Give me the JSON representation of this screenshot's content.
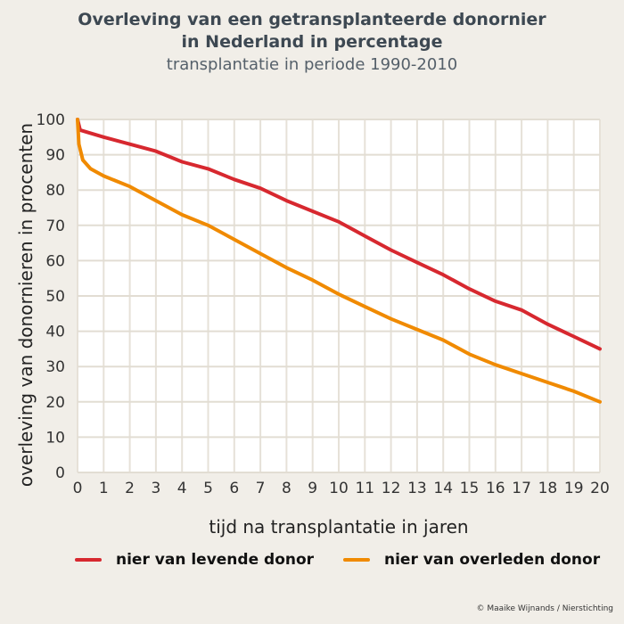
{
  "chart_data": {
    "type": "line",
    "title": "Overleving van een getransplanteerde donornier in Nederland in percentage",
    "title_lines": [
      "Overleving van een getransplanteerde donornier",
      "in Nederland in percentage"
    ],
    "subtitle": "transplantatie in periode 1990-2010",
    "xlabel": "tijd na transplantatie in jaren",
    "ylabel": "overleving van donornieren in procenten",
    "xlim": [
      0,
      20
    ],
    "ylim": [
      0,
      100
    ],
    "xticks": [
      0,
      1,
      2,
      3,
      4,
      5,
      6,
      7,
      8,
      9,
      10,
      11,
      12,
      13,
      14,
      15,
      16,
      17,
      18,
      19,
      20
    ],
    "yticks": [
      0,
      10,
      20,
      30,
      40,
      50,
      60,
      70,
      80,
      90,
      100
    ],
    "grid": true,
    "legend_placement": "bottom",
    "series": [
      {
        "name": "nier van levende donor",
        "color": "#d7282f",
        "x": [
          0,
          0.1,
          1,
          2,
          3,
          4,
          5,
          6,
          7,
          8,
          9,
          10,
          11,
          12,
          13,
          14,
          15,
          16,
          17,
          18,
          19,
          20
        ],
        "y": [
          100,
          97,
          95,
          93,
          91,
          88,
          86,
          83,
          80.5,
          77,
          74,
          71,
          67,
          63,
          59.5,
          56,
          52,
          48.5,
          46,
          42,
          38.5,
          35
        ]
      },
      {
        "name": "nier van overleden donor",
        "color": "#f08a00",
        "x": [
          0,
          0.05,
          0.2,
          0.5,
          1,
          2,
          3,
          4,
          5,
          6,
          7,
          8,
          9,
          10,
          11,
          12,
          13,
          14,
          15,
          16,
          17,
          18,
          19,
          20
        ],
        "y": [
          100,
          93,
          88.5,
          86,
          84,
          81,
          77,
          73,
          70,
          66,
          62,
          58,
          54.5,
          50.5,
          47,
          43.5,
          40.5,
          37.5,
          33.5,
          30.5,
          28,
          25.5,
          23,
          20
        ]
      }
    ]
  },
  "copyright": "© Maaike Wijnands / Nierstichting"
}
